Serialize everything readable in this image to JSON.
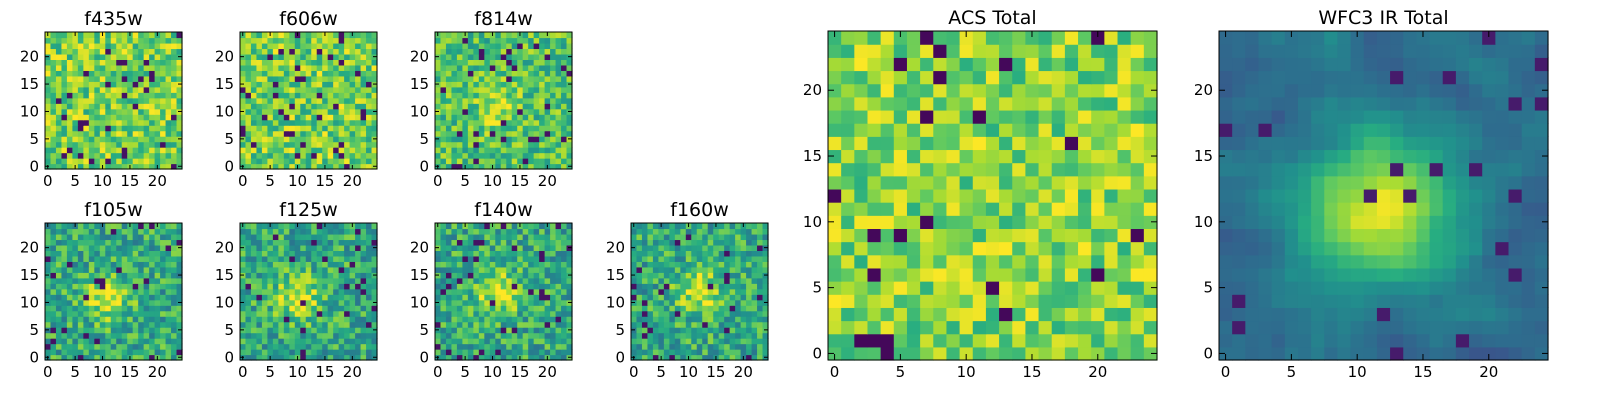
{
  "chart_data": [
    {
      "type": "heatmap",
      "title": "f435w",
      "grid_size": 25,
      "xticks": [
        "0",
        "5",
        "10",
        "15",
        "20"
      ],
      "yticks": [
        "0",
        "5",
        "10",
        "15",
        "20"
      ],
      "xlim": [
        -0.5,
        24.5
      ],
      "ylim": [
        -0.5,
        24.5
      ],
      "colormap": "viridis",
      "pattern": "noise",
      "seed": 11
    },
    {
      "type": "heatmap",
      "title": "f606w",
      "grid_size": 25,
      "xticks": [
        "0",
        "5",
        "10",
        "15",
        "20"
      ],
      "yticks": [
        "0",
        "5",
        "10",
        "15",
        "20"
      ],
      "xlim": [
        -0.5,
        24.5
      ],
      "ylim": [
        -0.5,
        24.5
      ],
      "colormap": "viridis",
      "pattern": "noise",
      "seed": 23
    },
    {
      "type": "heatmap",
      "title": "f814w",
      "grid_size": 25,
      "xticks": [
        "0",
        "5",
        "10",
        "15",
        "20"
      ],
      "yticks": [
        "0",
        "5",
        "10",
        "15",
        "20"
      ],
      "xlim": [
        -0.5,
        24.5
      ],
      "ylim": [
        -0.5,
        24.5
      ],
      "colormap": "viridis",
      "pattern": "faint_source",
      "source_center": [
        11,
        11
      ],
      "seed": 37
    },
    {
      "type": "heatmap",
      "title": "f105w",
      "grid_size": 25,
      "xticks": [
        "0",
        "5",
        "10",
        "15",
        "20"
      ],
      "yticks": [
        "0",
        "5",
        "10",
        "15",
        "20"
      ],
      "xlim": [
        -0.5,
        24.5
      ],
      "ylim": [
        -0.5,
        24.5
      ],
      "colormap": "viridis",
      "pattern": "source",
      "source_center": [
        11,
        11
      ],
      "seed": 41
    },
    {
      "type": "heatmap",
      "title": "f125w",
      "grid_size": 25,
      "xticks": [
        "0",
        "5",
        "10",
        "15",
        "20"
      ],
      "yticks": [
        "0",
        "5",
        "10",
        "15",
        "20"
      ],
      "xlim": [
        -0.5,
        24.5
      ],
      "ylim": [
        -0.5,
        24.5
      ],
      "colormap": "viridis",
      "pattern": "source",
      "source_center": [
        10,
        11
      ],
      "seed": 53
    },
    {
      "type": "heatmap",
      "title": "f140w",
      "grid_size": 25,
      "xticks": [
        "0",
        "5",
        "10",
        "15",
        "20"
      ],
      "yticks": [
        "0",
        "5",
        "10",
        "15",
        "20"
      ],
      "xlim": [
        -0.5,
        24.5
      ],
      "ylim": [
        -0.5,
        24.5
      ],
      "colormap": "viridis",
      "pattern": "source",
      "source_center": [
        11,
        12
      ],
      "seed": 67
    },
    {
      "type": "heatmap",
      "title": "f160w",
      "grid_size": 25,
      "xticks": [
        "0",
        "5",
        "10",
        "15",
        "20"
      ],
      "yticks": [
        "0",
        "5",
        "10",
        "15",
        "20"
      ],
      "xlim": [
        -0.5,
        24.5
      ],
      "ylim": [
        -0.5,
        24.5
      ],
      "colormap": "viridis",
      "pattern": "source",
      "source_center": [
        12,
        12
      ],
      "seed": 79
    },
    {
      "type": "heatmap",
      "title": "ACS Total",
      "grid_size": 25,
      "xticks": [
        "0",
        "5",
        "10",
        "15",
        "20"
      ],
      "yticks": [
        "0",
        "5",
        "10",
        "15",
        "20"
      ],
      "xlim": [
        -0.5,
        24.5
      ],
      "ylim": [
        -0.5,
        24.5
      ],
      "colormap": "viridis",
      "pattern": "bright_noise",
      "seed": 97
    },
    {
      "type": "heatmap",
      "title": "WFC3 IR Total",
      "grid_size": 25,
      "xticks": [
        "0",
        "5",
        "10",
        "15",
        "20"
      ],
      "yticks": [
        "0",
        "5",
        "10",
        "15",
        "20"
      ],
      "xlim": [
        -0.5,
        24.5
      ],
      "ylim": [
        -0.5,
        24.5
      ],
      "colormap": "viridis",
      "pattern": "smooth_source",
      "source_center": [
        12,
        11
      ],
      "seed": 101
    }
  ]
}
